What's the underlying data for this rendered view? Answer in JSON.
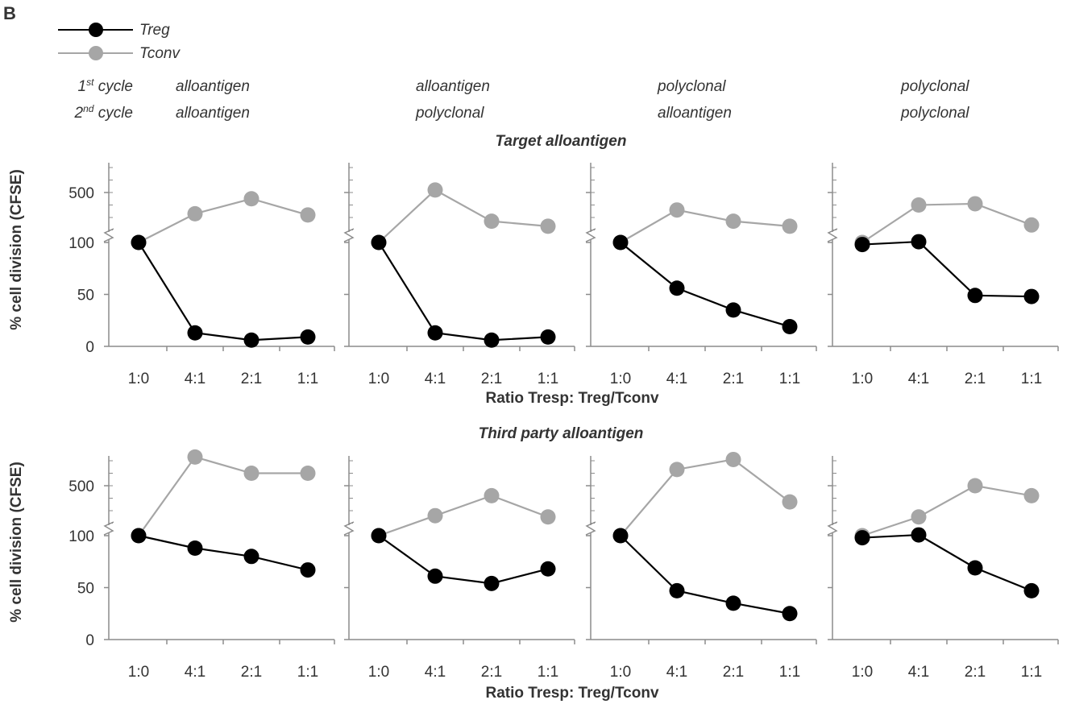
{
  "panel_letter": "B",
  "legend": {
    "treg_label": "Treg",
    "tconv_label": "Tconv",
    "treg_color": "#000000",
    "tconv_color": "#a6a6a6"
  },
  "cycle_labels": {
    "first_main": "1",
    "first_sup": "st",
    "first_rest": " cycle",
    "second_main": "2",
    "second_sup": "nd",
    "second_rest": " cycle"
  },
  "conditions": [
    {
      "first": "alloantigen",
      "second": "alloantigen"
    },
    {
      "first": "alloantigen",
      "second": "polyclonal"
    },
    {
      "first": "polyclonal",
      "second": "alloantigen"
    },
    {
      "first": "polyclonal",
      "second": "polyclonal"
    }
  ],
  "row_titles": [
    "Target alloantigen",
    "Third party alloantigen"
  ],
  "y_axis_label": "% cell division (CFSE)",
  "x_axis_label": "Ratio Tresp: Treg/Tconv",
  "y_tick_labels": [
    "0",
    "50",
    "100",
    "500"
  ],
  "chart_data": {
    "type": "line",
    "categories": [
      "1:0",
      "4:1",
      "2:1",
      "1:1"
    ],
    "y_scale": "broken axis: linear 0-100 below break, compressed above break",
    "y_ticks": [
      0,
      50,
      100,
      500
    ],
    "ylim": [
      0,
      800
    ],
    "grid": false,
    "legend_position": "top-left",
    "panels": [
      {
        "row": "Target alloantigen",
        "first_cycle": "alloantigen",
        "second_cycle": "alloantigen",
        "series": [
          {
            "name": "Treg",
            "values": [
              100,
              13,
              6,
              9
            ]
          },
          {
            "name": "Tconv",
            "values": [
              100,
              330,
              450,
              320
            ]
          }
        ]
      },
      {
        "row": "Target alloantigen",
        "first_cycle": "alloantigen",
        "second_cycle": "polyclonal",
        "series": [
          {
            "name": "Treg",
            "values": [
              100,
              13,
              6,
              9
            ]
          },
          {
            "name": "Tconv",
            "values": [
              100,
              520,
              270,
              230
            ]
          }
        ]
      },
      {
        "row": "Target alloantigen",
        "first_cycle": "polyclonal",
        "second_cycle": "alloantigen",
        "series": [
          {
            "name": "Treg",
            "values": [
              100,
              56,
              35,
              19
            ]
          },
          {
            "name": "Tconv",
            "values": [
              100,
              360,
              270,
              230
            ]
          }
        ]
      },
      {
        "row": "Target alloantigen",
        "first_cycle": "polyclonal",
        "second_cycle": "polyclonal",
        "series": [
          {
            "name": "Treg",
            "values": [
              98,
              106,
              49,
              48
            ]
          },
          {
            "name": "Tconv",
            "values": [
              100,
              400,
              410,
              240
            ]
          }
        ]
      },
      {
        "row": "Third party alloantigen",
        "first_cycle": "alloantigen",
        "second_cycle": "alloantigen",
        "series": [
          {
            "name": "Treg",
            "values": [
              100,
              88,
              80,
              67
            ]
          },
          {
            "name": "Tconv",
            "values": [
              100,
              730,
              600,
              600
            ]
          }
        ]
      },
      {
        "row": "Third party alloantigen",
        "first_cycle": "alloantigen",
        "second_cycle": "polyclonal",
        "series": [
          {
            "name": "Treg",
            "values": [
              100,
              61,
              54,
              68
            ]
          },
          {
            "name": "Tconv",
            "values": [
              100,
              260,
              420,
              250
            ]
          }
        ]
      },
      {
        "row": "Third party alloantigen",
        "first_cycle": "polyclonal",
        "second_cycle": "alloantigen",
        "series": [
          {
            "name": "Treg",
            "values": [
              100,
              47,
              35,
              25
            ]
          },
          {
            "name": "Tconv",
            "values": [
              100,
              630,
              710,
              370
            ]
          }
        ]
      },
      {
        "row": "Third party alloantigen",
        "first_cycle": "polyclonal",
        "second_cycle": "polyclonal",
        "series": [
          {
            "name": "Treg",
            "values": [
              98,
              106,
              69,
              47
            ]
          },
          {
            "name": "Tconv",
            "values": [
              100,
              250,
              500,
              420
            ]
          }
        ]
      }
    ]
  }
}
